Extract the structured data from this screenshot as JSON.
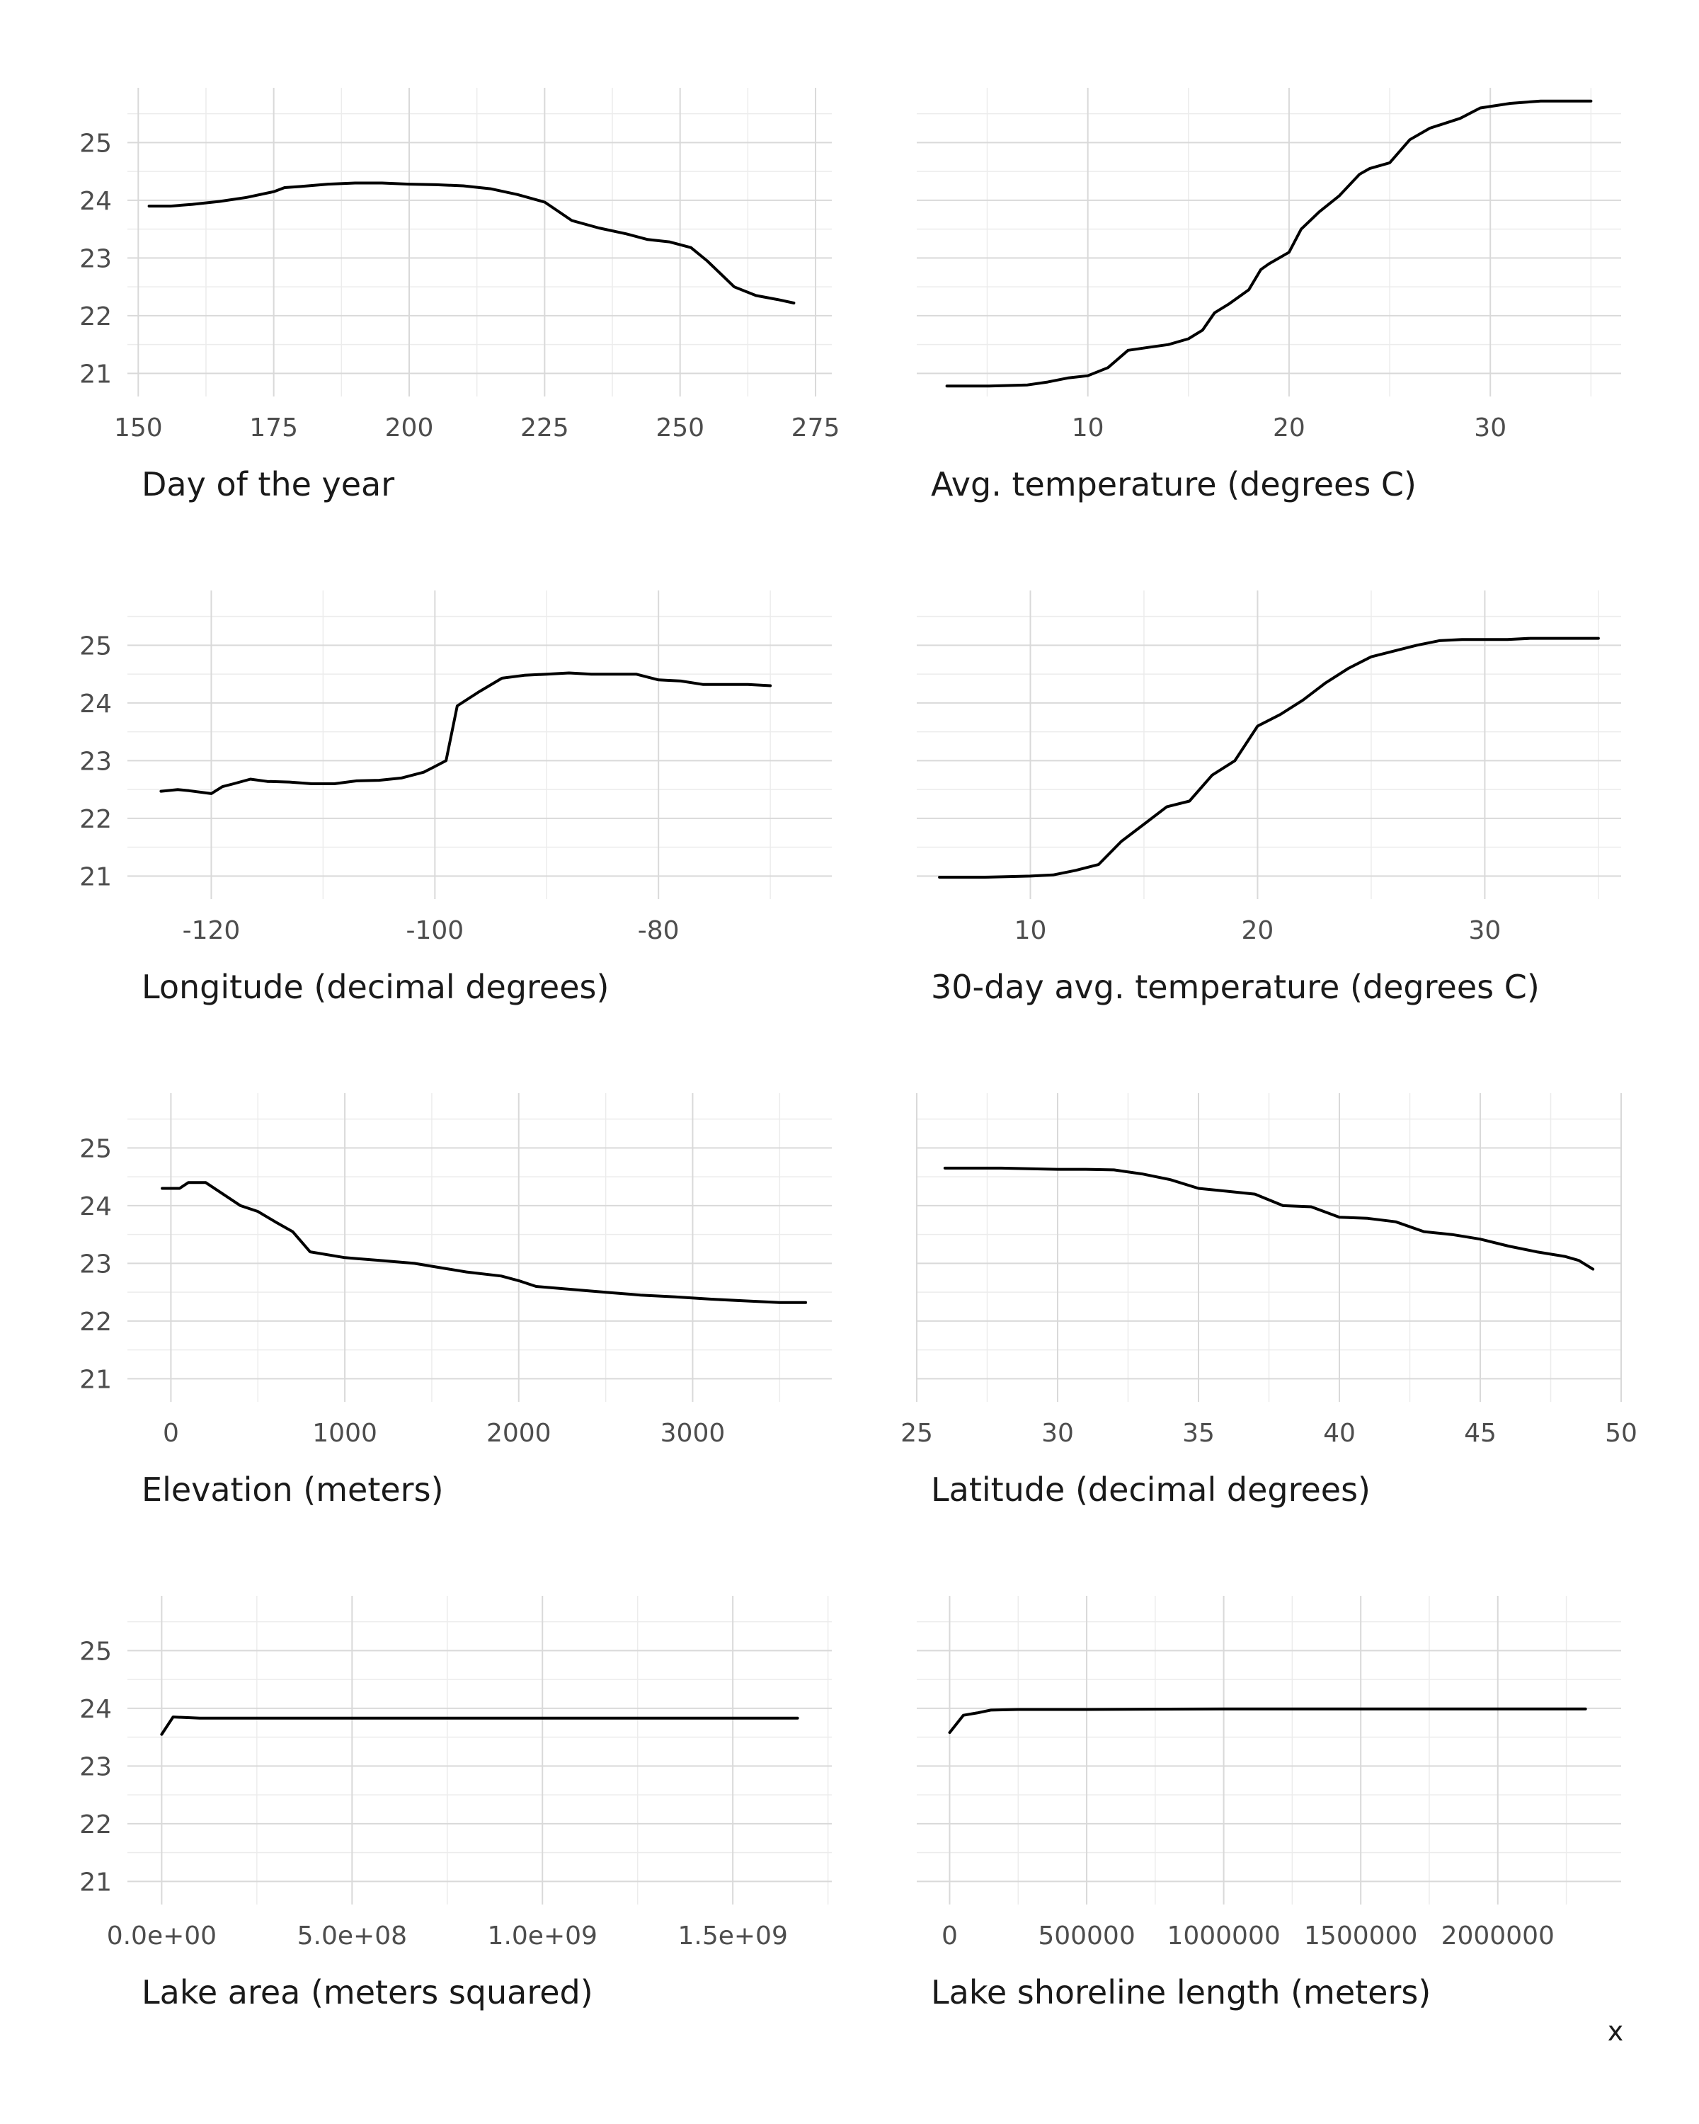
{
  "chart_data": [
    {
      "type": "line",
      "xlabel": "Day of the year",
      "xlim": [
        148,
        278
      ],
      "xticks": [
        150,
        175,
        200,
        225,
        250,
        275
      ],
      "xtick_labels": [
        "150",
        "175",
        "200",
        "225",
        "250",
        "275"
      ],
      "ylim": [
        20.6,
        25.95
      ],
      "yticks": [
        21,
        22,
        23,
        24,
        25
      ],
      "grid": true,
      "x": [
        152,
        156,
        160,
        165,
        170,
        175,
        177,
        180,
        185,
        190,
        195,
        200,
        205,
        210,
        215,
        220,
        225,
        230,
        235,
        240,
        244,
        248,
        252,
        255,
        260,
        264,
        268,
        271
      ],
      "y": [
        23.9,
        23.9,
        23.93,
        23.98,
        24.05,
        24.15,
        24.22,
        24.24,
        24.28,
        24.3,
        24.3,
        24.28,
        24.27,
        24.25,
        24.2,
        24.1,
        23.97,
        23.65,
        23.52,
        23.42,
        23.32,
        23.28,
        23.18,
        22.95,
        22.5,
        22.35,
        22.28,
        22.22
      ]
    },
    {
      "type": "line",
      "xlabel": "Avg. temperature (degrees C)",
      "xlim": [
        1.5,
        36.5
      ],
      "xticks": [
        10,
        20,
        30
      ],
      "xtick_labels": [
        "10",
        "20",
        "30"
      ],
      "ylim": [
        20.6,
        25.95
      ],
      "yticks": [
        21,
        22,
        23,
        24,
        25
      ],
      "grid": true,
      "x": [
        3,
        5,
        7,
        8,
        9,
        10,
        11,
        12,
        13,
        14,
        15,
        15.7,
        16.3,
        17,
        18,
        18.6,
        19,
        20,
        20.6,
        21.5,
        22.5,
        23.5,
        24,
        25,
        26,
        27,
        28.5,
        29.5,
        31,
        32.5,
        35
      ],
      "y": [
        20.78,
        20.78,
        20.8,
        20.85,
        20.92,
        20.96,
        21.1,
        21.4,
        21.45,
        21.5,
        21.6,
        21.75,
        22.05,
        22.2,
        22.45,
        22.8,
        22.9,
        23.1,
        23.5,
        23.8,
        24.08,
        24.45,
        24.55,
        24.65,
        25.05,
        25.25,
        25.42,
        25.6,
        25.68,
        25.72,
        25.72
      ]
    },
    {
      "type": "line",
      "xlabel": "Longitude (decimal degrees)",
      "xlim": [
        -127.5,
        -64.5
      ],
      "xticks": [
        -120,
        -100,
        -80
      ],
      "xtick_labels": [
        "-120",
        "-100",
        "-80"
      ],
      "ylim": [
        20.6,
        25.95
      ],
      "yticks": [
        21,
        22,
        23,
        24,
        25
      ],
      "grid": true,
      "x": [
        -124.5,
        -123,
        -122,
        -120,
        -119,
        -118,
        -116.5,
        -115,
        -113,
        -111,
        -109,
        -107,
        -105,
        -103,
        -101,
        -100,
        -99,
        -98,
        -96,
        -94,
        -92,
        -90,
        -88,
        -86,
        -84,
        -82,
        -80,
        -78,
        -76,
        -74,
        -72,
        -70
      ],
      "y": [
        22.47,
        22.5,
        22.48,
        22.43,
        22.55,
        22.6,
        22.68,
        22.64,
        22.63,
        22.6,
        22.6,
        22.65,
        22.66,
        22.7,
        22.8,
        22.9,
        23.0,
        23.95,
        24.2,
        24.43,
        24.48,
        24.5,
        24.52,
        24.5,
        24.5,
        24.5,
        24.4,
        24.38,
        24.32,
        24.32,
        24.32,
        24.3
      ]
    },
    {
      "type": "line",
      "xlabel": "30-day avg. temperature (degrees C)",
      "xlim": [
        5,
        36
      ],
      "xticks": [
        10,
        20,
        30
      ],
      "xtick_labels": [
        "10",
        "20",
        "30"
      ],
      "ylim": [
        20.6,
        25.95
      ],
      "yticks": [
        21,
        22,
        23,
        24,
        25
      ],
      "grid": true,
      "x": [
        6,
        8,
        10,
        11,
        12,
        13,
        14,
        15,
        16,
        17,
        18,
        19,
        20,
        21,
        22,
        23,
        24,
        25,
        26,
        27,
        28,
        29,
        30,
        31,
        32,
        33,
        34,
        35
      ],
      "y": [
        20.98,
        20.98,
        21.0,
        21.02,
        21.1,
        21.2,
        21.6,
        21.9,
        22.2,
        22.3,
        22.75,
        23.0,
        23.6,
        23.8,
        24.05,
        24.35,
        24.6,
        24.8,
        24.9,
        25.0,
        25.08,
        25.1,
        25.1,
        25.1,
        25.12,
        25.12,
        25.12,
        25.12
      ]
    },
    {
      "type": "line",
      "xlabel": "Elevation (meters)",
      "xlim": [
        -250,
        3800
      ],
      "xticks": [
        0,
        1000,
        2000,
        3000
      ],
      "xtick_labels": [
        "0",
        "1000",
        "2000",
        "3000"
      ],
      "ylim": [
        20.6,
        25.95
      ],
      "yticks": [
        21,
        22,
        23,
        24,
        25
      ],
      "grid": true,
      "x": [
        -50,
        50,
        100,
        200,
        300,
        400,
        500,
        600,
        700,
        800,
        1000,
        1200,
        1400,
        1500,
        1700,
        1900,
        2000,
        2100,
        2300,
        2500,
        2700,
        2900,
        3100,
        3300,
        3500,
        3650
      ],
      "y": [
        24.3,
        24.3,
        24.4,
        24.4,
        24.2,
        24.0,
        23.9,
        23.72,
        23.55,
        23.2,
        23.1,
        23.05,
        23.0,
        22.95,
        22.85,
        22.78,
        22.7,
        22.6,
        22.55,
        22.5,
        22.45,
        22.42,
        22.38,
        22.35,
        22.32,
        22.32
      ]
    },
    {
      "type": "line",
      "xlabel": "Latitude (decimal degrees)",
      "xlim": [
        25,
        50
      ],
      "xticks": [
        25,
        30,
        35,
        40,
        45,
        50
      ],
      "xtick_labels": [
        "25",
        "30",
        "35",
        "40",
        "45",
        "50"
      ],
      "ylim": [
        20.6,
        25.95
      ],
      "yticks": [
        21,
        22,
        23,
        24,
        25
      ],
      "grid": true,
      "x": [
        26,
        28,
        30,
        31,
        32,
        33,
        34,
        35,
        36,
        37,
        38,
        39,
        40,
        41,
        42,
        43,
        44,
        45,
        46,
        47,
        48,
        48.5,
        49
      ],
      "y": [
        24.65,
        24.65,
        24.63,
        24.63,
        24.62,
        24.55,
        24.45,
        24.3,
        24.25,
        24.2,
        24.0,
        23.98,
        23.8,
        23.78,
        23.72,
        23.55,
        23.5,
        23.42,
        23.3,
        23.2,
        23.12,
        23.05,
        22.9
      ]
    },
    {
      "type": "line",
      "xlabel": "Lake area (meters squared)",
      "xlim": [
        -90000000,
        1760000000
      ],
      "xticks": [
        0,
        500000000,
        1000000000,
        1500000000
      ],
      "xtick_labels": [
        "0.0e+00",
        "5.0e+08",
        "1.0e+09",
        "1.5e+09"
      ],
      "ylim": [
        20.6,
        25.95
      ],
      "yticks": [
        21,
        22,
        23,
        24,
        25
      ],
      "grid": true,
      "x": [
        0,
        30000000,
        100000000,
        500000000,
        1000000000,
        1500000000,
        1670000000
      ],
      "y": [
        23.55,
        23.85,
        23.83,
        23.83,
        23.83,
        23.83,
        23.83
      ]
    },
    {
      "type": "line",
      "xlabel": "Lake shoreline length (meters)",
      "xlim": [
        -120000,
        2450000
      ],
      "xticks": [
        0,
        500000,
        1000000,
        1500000,
        2000000
      ],
      "xtick_labels": [
        "0",
        "500000",
        "1000000",
        "1500000",
        "2000000"
      ],
      "ylim": [
        20.6,
        25.95
      ],
      "yticks": [
        21,
        22,
        23,
        24,
        25
      ],
      "grid": true,
      "x": [
        0,
        50000,
        100000,
        150000,
        250000,
        500000,
        1000000,
        2000000,
        2320000
      ],
      "y": [
        23.58,
        23.88,
        23.92,
        23.97,
        23.98,
        23.98,
        23.99,
        23.99,
        23.99
      ]
    }
  ],
  "footer": {
    "facet_label": "x"
  }
}
